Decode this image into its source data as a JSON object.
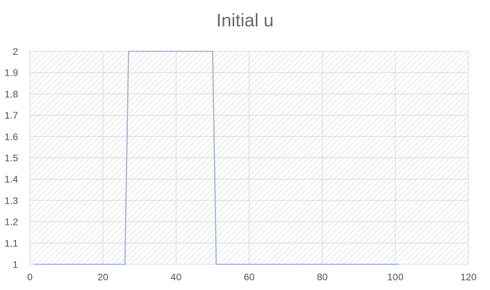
{
  "chart_data": {
    "type": "line",
    "title": "Initial u",
    "xlabel": "",
    "ylabel": "",
    "xlim": [
      0,
      120
    ],
    "ylim": [
      1,
      2
    ],
    "xticks": [
      0,
      20,
      40,
      60,
      80,
      100,
      120
    ],
    "yticks": [
      1,
      1.1,
      1.2,
      1.3,
      1.4,
      1.5,
      1.6,
      1.7,
      1.8,
      1.9,
      2
    ],
    "ytick_labels": [
      "1",
      "1.1",
      "1.2",
      "1.3",
      "1.4",
      "1.5",
      "1.6",
      "1.7",
      "1.8",
      "1.9",
      "2"
    ],
    "grid": true,
    "legend": "none",
    "series": [
      {
        "x": [
          1,
          26,
          27,
          50,
          51,
          101
        ],
        "y": [
          1,
          1,
          2,
          2,
          1,
          1
        ]
      }
    ],
    "colors": {
      "line": "#9bb1d4",
      "grid": "#d9d9d9",
      "hatch": "#e3e3e3",
      "title": "#6b6b6b",
      "tick_label": "#555555"
    }
  }
}
